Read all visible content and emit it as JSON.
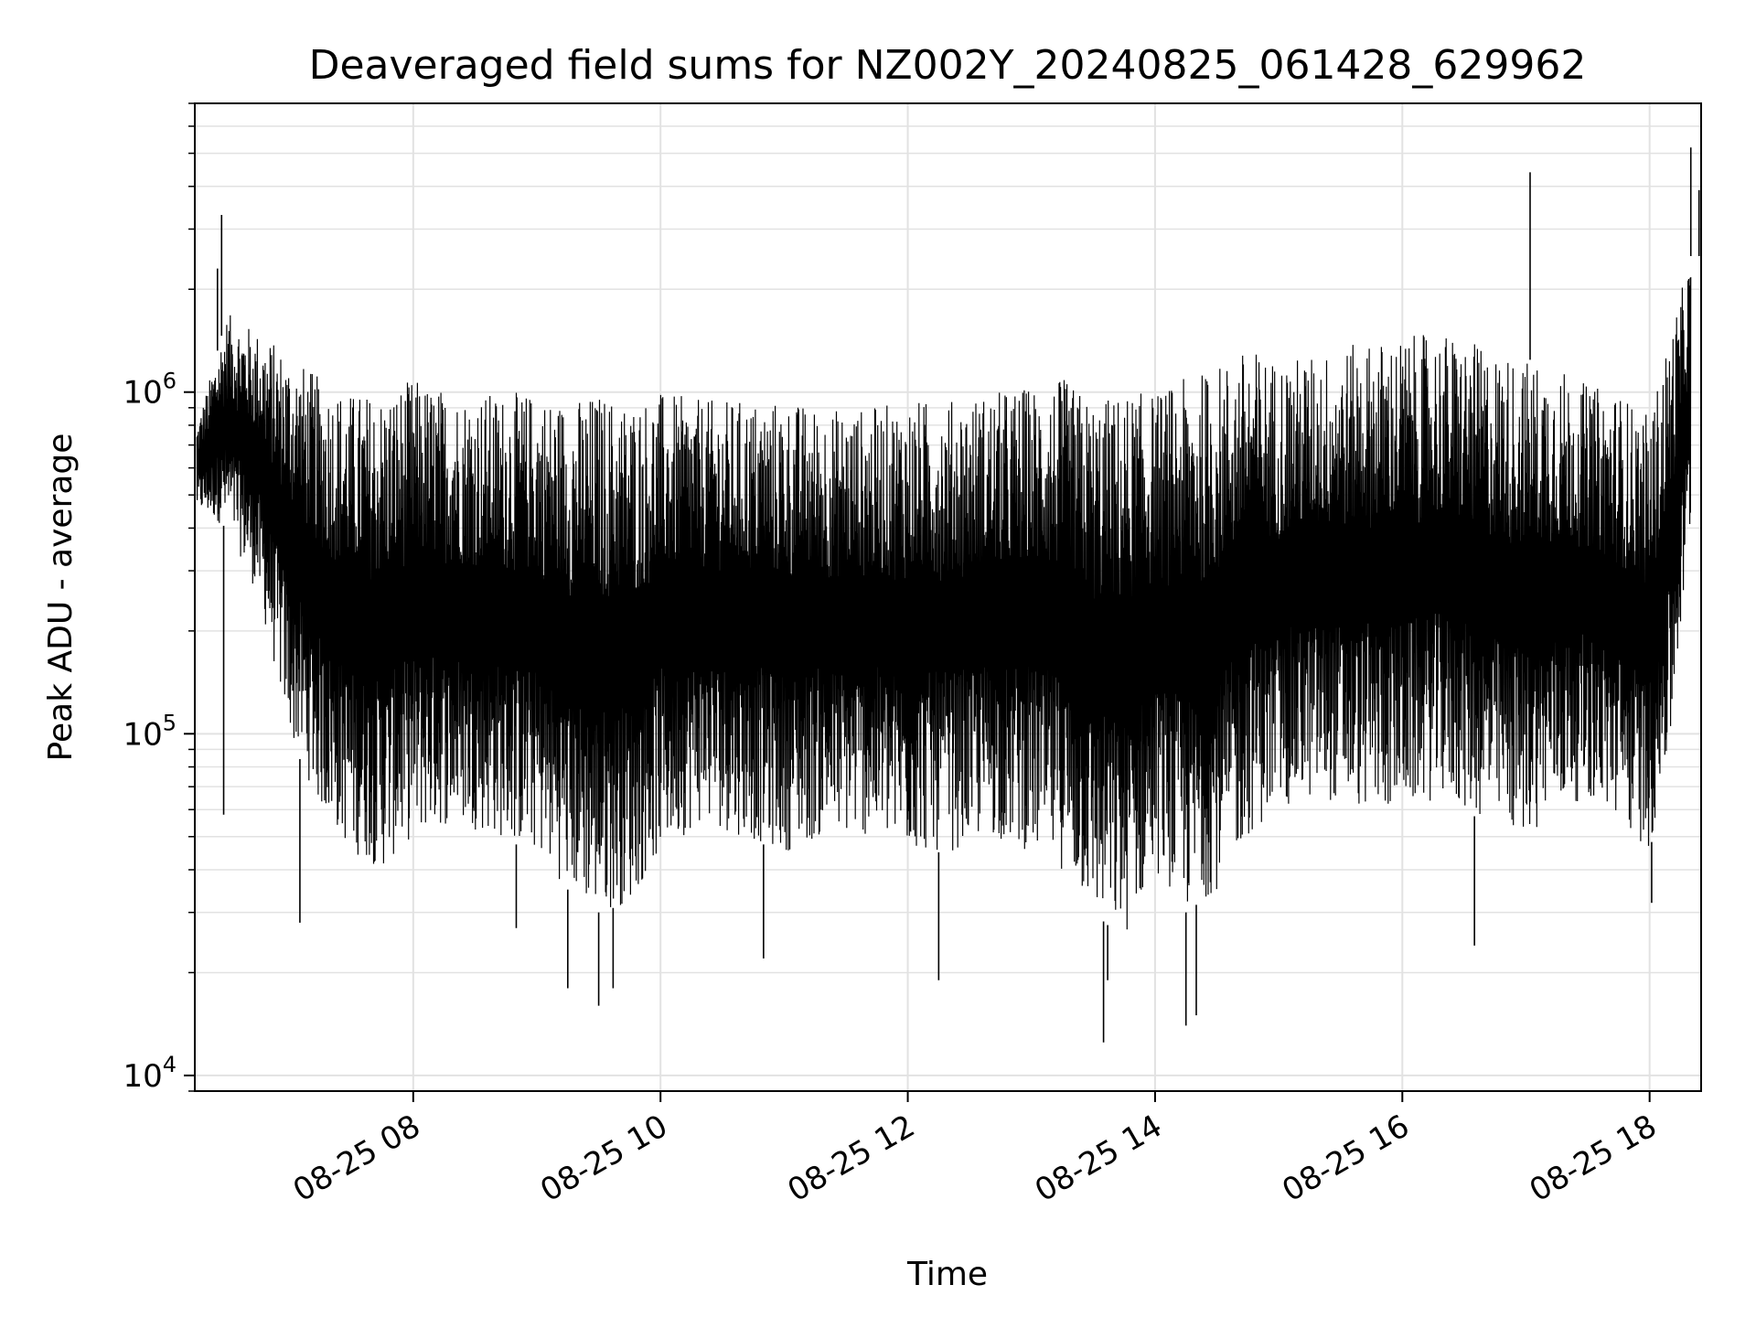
{
  "chart_data": {
    "type": "line",
    "title": "Deaveraged field sums for NZ002Y_20240825_061428_629962",
    "xlabel": "Time",
    "ylabel": "Peak ADU - average",
    "yscale": "log",
    "ylim": [
      9000,
      7000000
    ],
    "xlim": [
      "2024-08-25T06:14",
      "2024-08-25T18:25"
    ],
    "grid": true,
    "line_color": "#000000",
    "x_ticks": [
      {
        "x": "2024-08-25T08:00",
        "label": "08-25 08"
      },
      {
        "x": "2024-08-25T10:00",
        "label": "08-25 10"
      },
      {
        "x": "2024-08-25T12:00",
        "label": "08-25 12"
      },
      {
        "x": "2024-08-25T14:00",
        "label": "08-25 14"
      },
      {
        "x": "2024-08-25T16:00",
        "label": "08-25 16"
      },
      {
        "x": "2024-08-25T18:00",
        "label": "08-25 18"
      }
    ],
    "y_ticks": [
      {
        "value": 10000,
        "base": "10",
        "exp": "4"
      },
      {
        "value": 100000,
        "base": "10",
        "exp": "5"
      },
      {
        "value": 1000000,
        "base": "10",
        "exp": "6"
      }
    ],
    "series": [
      {
        "x": [
          "2024-08-25T06:15",
          "2024-08-25T06:30",
          "2024-08-25T06:45",
          "2024-08-25T07:00",
          "2024-08-25T07:15",
          "2024-08-25T07:30",
          "2024-08-25T07:45",
          "2024-08-25T08:00",
          "2024-08-25T08:20",
          "2024-08-25T08:40",
          "2024-08-25T09:00",
          "2024-08-25T09:15",
          "2024-08-25T09:30",
          "2024-08-25T09:45",
          "2024-08-25T10:00",
          "2024-08-25T10:20",
          "2024-08-25T10:40",
          "2024-08-25T11:00",
          "2024-08-25T11:20",
          "2024-08-25T11:40",
          "2024-08-25T12:00",
          "2024-08-25T12:20",
          "2024-08-25T12:40",
          "2024-08-25T13:00",
          "2024-08-25T13:15",
          "2024-08-25T13:30",
          "2024-08-25T13:45",
          "2024-08-25T14:00",
          "2024-08-25T14:15",
          "2024-08-25T14:30",
          "2024-08-25T14:45",
          "2024-08-25T15:00",
          "2024-08-25T15:20",
          "2024-08-25T15:40",
          "2024-08-25T16:00",
          "2024-08-25T16:20",
          "2024-08-25T16:40",
          "2024-08-25T17:00",
          "2024-08-25T17:15",
          "2024-08-25T17:30",
          "2024-08-25T17:45",
          "2024-08-25T18:00",
          "2024-08-25T18:10",
          "2024-08-25T18:20"
        ],
        "low": [
          450000,
          400000,
          250000,
          100000,
          60000,
          45000,
          40000,
          50000,
          55000,
          50000,
          45000,
          35000,
          30000,
          32000,
          45000,
          55000,
          50000,
          45000,
          50000,
          50000,
          45000,
          45000,
          50000,
          45000,
          40000,
          30000,
          25000,
          40000,
          30000,
          35000,
          50000,
          60000,
          65000,
          60000,
          60000,
          65000,
          55000,
          50000,
          60000,
          65000,
          55000,
          45000,
          90000,
          400000
        ],
        "high": [
          800000,
          1700000,
          1500000,
          1300000,
          1100000,
          1000000,
          1000000,
          1100000,
          1000000,
          1000000,
          1000000,
          950000,
          1000000,
          950000,
          1000000,
          950000,
          950000,
          950000,
          900000,
          900000,
          950000,
          950000,
          1000000,
          1050000,
          1100000,
          950000,
          1000000,
          1000000,
          1100000,
          1200000,
          1350000,
          1250000,
          1300000,
          1400000,
          1450000,
          1500000,
          1350000,
          1250000,
          1200000,
          1050000,
          1000000,
          850000,
          1500000,
          2500000
        ],
        "spikes": [
          {
            "x": "2024-08-25T06:27",
            "y": 3300000
          },
          {
            "x": "2024-08-25T06:25",
            "y": 2300000
          },
          {
            "x": "2024-08-25T06:28",
            "y": 58000
          },
          {
            "x": "2024-08-25T07:05",
            "y": 28000
          },
          {
            "x": "2024-08-25T08:50",
            "y": 27000
          },
          {
            "x": "2024-08-25T09:15",
            "y": 18000
          },
          {
            "x": "2024-08-25T09:30",
            "y": 16000
          },
          {
            "x": "2024-08-25T09:37",
            "y": 18000
          },
          {
            "x": "2024-08-25T10:50",
            "y": 22000
          },
          {
            "x": "2024-08-25T12:15",
            "y": 19000
          },
          {
            "x": "2024-08-25T13:35",
            "y": 12500
          },
          {
            "x": "2024-08-25T13:37",
            "y": 19000
          },
          {
            "x": "2024-08-25T14:15",
            "y": 14000
          },
          {
            "x": "2024-08-25T14:20",
            "y": 15000
          },
          {
            "x": "2024-08-25T16:35",
            "y": 24000
          },
          {
            "x": "2024-08-25T17:02",
            "y": 4400000
          },
          {
            "x": "2024-08-25T18:01",
            "y": 32000
          },
          {
            "x": "2024-08-25T18:20",
            "y": 5200000
          },
          {
            "x": "2024-08-25T18:24",
            "y": 3900000
          }
        ]
      }
    ]
  }
}
